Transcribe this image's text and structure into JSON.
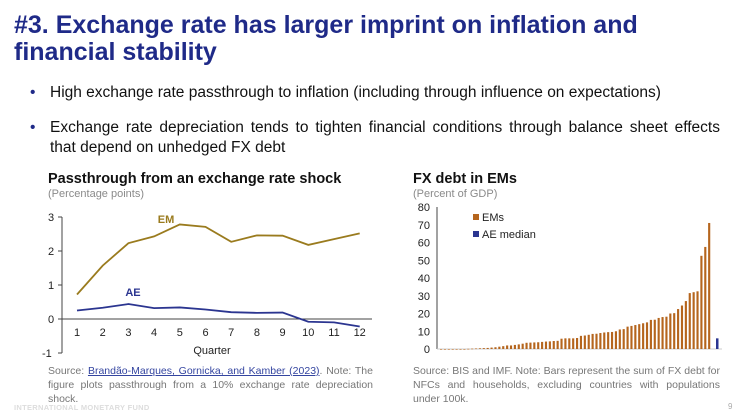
{
  "slide": {
    "title": "#3. Exchange rate has larger imprint on inflation and financial stability",
    "bullets": [
      "High exchange rate passthrough to inflation (including through influence on expectations)",
      "Exchange rate depreciation tends to tighten financial conditions through balance sheet effects that depend on unhedged FX debt"
    ],
    "bullet_symbol": "•",
    "footer": "INTERNATIONAL MONETARY FUND",
    "page_number": "9"
  },
  "left_source": {
    "prefix": "Source: ",
    "link": "Brandão-Marques, Gornicka, and Kamber (2023)",
    "rest": ". Note: The figure plots passthrough from a 10% exchange rate depreciation shock."
  },
  "right_source": "Source: BIS and IMF. Note: Bars represent the sum of FX debt for NFCs and households, excluding countries with populations under 100k.",
  "chart_data": [
    {
      "type": "line",
      "title": "Passthrough from an exchange rate shock",
      "subtitle": "(Percentage points)",
      "xlabel": "Quarter",
      "ylabel": "",
      "x": [
        1,
        2,
        3,
        4,
        5,
        6,
        7,
        8,
        9,
        10,
        11,
        12
      ],
      "ylim": [
        -1,
        3
      ],
      "yticks": [
        "-1",
        "0",
        "1",
        "2",
        "3"
      ],
      "series": [
        {
          "name": "EM",
          "color": "#9a7b1e",
          "values": [
            0.72,
            1.57,
            2.23,
            2.43,
            2.78,
            2.71,
            2.27,
            2.46,
            2.45,
            2.18,
            2.35,
            2.52
          ]
        },
        {
          "name": "AE",
          "color": "#2b3590",
          "values": [
            0.25,
            0.33,
            0.44,
            0.32,
            0.34,
            0.28,
            0.2,
            0.18,
            0.19,
            -0.08,
            -0.1,
            -0.22
          ]
        }
      ]
    },
    {
      "type": "bar",
      "title": "FX debt in EMs",
      "subtitle": "(Percent of GDP)",
      "ylim": [
        0,
        80
      ],
      "yticks": [
        "0",
        "10",
        "20",
        "30",
        "40",
        "50",
        "60",
        "70",
        "80"
      ],
      "legend": "top-left",
      "series": [
        {
          "name": "EMs",
          "color": "#b5651d",
          "values": [
            0,
            0,
            0,
            0,
            0,
            0,
            0,
            0.1,
            0.2,
            0.3,
            0.4,
            0.5,
            0.6,
            0.8,
            1,
            1.3,
            1.6,
            2,
            2,
            2.3,
            2.6,
            3,
            3.5,
            3.6,
            3.7,
            3.8,
            4,
            4.2,
            4.3,
            4.5,
            4.6,
            5.8,
            6,
            6,
            6,
            6.2,
            7.4,
            7.6,
            8,
            8.5,
            8.6,
            9,
            9.3,
            9.5,
            9.6,
            10,
            11,
            11.2,
            12.6,
            13,
            13.5,
            14,
            14.5,
            15,
            16.4,
            16.5,
            17.5,
            18,
            18.2,
            20,
            20.2,
            22.5,
            24.5,
            27,
            31.5,
            32,
            32.5,
            52.5,
            57.5,
            71
          ]
        },
        {
          "name": "AE median",
          "color": "#2b3590",
          "values": [
            6
          ]
        }
      ]
    }
  ]
}
